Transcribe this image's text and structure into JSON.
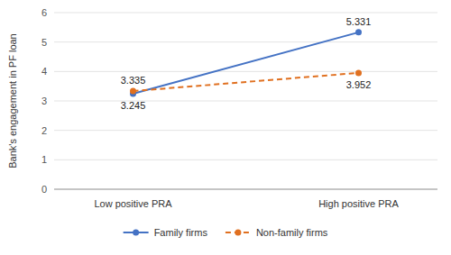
{
  "chart_data": {
    "type": "line",
    "ylabel": "Bank's engagement in PF loan",
    "categories": [
      "Low positive PRA",
      "High positive PRA"
    ],
    "series": [
      {
        "name": "Family firms",
        "color": "#4472C4",
        "values": [
          3.245,
          5.331
        ],
        "line_style": "solid",
        "marker": "circle"
      },
      {
        "name": "Non-family firms",
        "color": "#E07020",
        "values": [
          3.335,
          3.952
        ],
        "line_style": "dashed",
        "marker": "circle"
      }
    ],
    "ylim": [
      0,
      6
    ],
    "yticks": [
      0,
      1,
      2,
      3,
      4,
      5,
      6
    ],
    "grid": true,
    "data_labels": true,
    "legend": "bottom"
  }
}
